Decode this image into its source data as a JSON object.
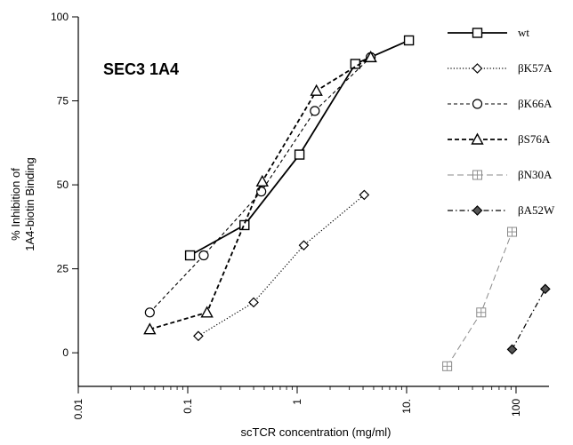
{
  "chart_data": {
    "type": "line",
    "title": "SEC3 1A4",
    "xlabel": "scTCR concentration (mg/ml)",
    "ylabel_line1": "% Inhibition of",
    "ylabel_line2": "1A4-biotin Binding",
    "x_scale": "log",
    "xlim": [
      0.01,
      200
    ],
    "ylim": [
      -10,
      100
    ],
    "x_ticks": [
      0.01,
      0.1,
      1,
      10,
      100
    ],
    "x_tick_labels": [
      "0.01",
      "0.1",
      "1",
      "10.",
      "100"
    ],
    "y_ticks": [
      0,
      25,
      50,
      75,
      100
    ],
    "y_tick_labels": [
      "0",
      "25",
      "50",
      "75",
      "100"
    ],
    "grid": false,
    "legend_position": "right",
    "series": [
      {
        "name": "wt",
        "marker": "square",
        "dash": "solid",
        "color": "#000000",
        "points": [
          [
            0.105,
            29
          ],
          [
            0.33,
            38
          ],
          [
            1.05,
            59
          ],
          [
            3.4,
            86
          ],
          [
            10.5,
            93
          ]
        ]
      },
      {
        "name": "βK57A",
        "marker": "diamond",
        "dash": "dotted",
        "color": "#000000",
        "points": [
          [
            0.125,
            5
          ],
          [
            0.4,
            15
          ],
          [
            1.15,
            32
          ],
          [
            4.1,
            47
          ]
        ]
      },
      {
        "name": "βK66A",
        "marker": "circle",
        "dash": "dashed",
        "color": "#000000",
        "points": [
          [
            0.045,
            12
          ],
          [
            0.14,
            29
          ],
          [
            0.47,
            48
          ],
          [
            1.45,
            72
          ],
          [
            4.7,
            88
          ]
        ]
      },
      {
        "name": "βS76A",
        "marker": "triangle",
        "dash": "bold-dashed",
        "color": "#000000",
        "points": [
          [
            0.045,
            7
          ],
          [
            0.15,
            12
          ],
          [
            0.48,
            51
          ],
          [
            1.5,
            78
          ],
          [
            4.7,
            88
          ]
        ]
      },
      {
        "name": "βN30A",
        "marker": "square-cross",
        "dash": "long-dash",
        "color": "#8a8a8a",
        "points": [
          [
            23.5,
            -4
          ],
          [
            48,
            12
          ],
          [
            92,
            36
          ]
        ]
      },
      {
        "name": "βA52W",
        "marker": "diamond-filled",
        "dash": "dash-dot",
        "color": "#000000",
        "points": [
          [
            92,
            1
          ],
          [
            185,
            19
          ]
        ]
      }
    ]
  }
}
